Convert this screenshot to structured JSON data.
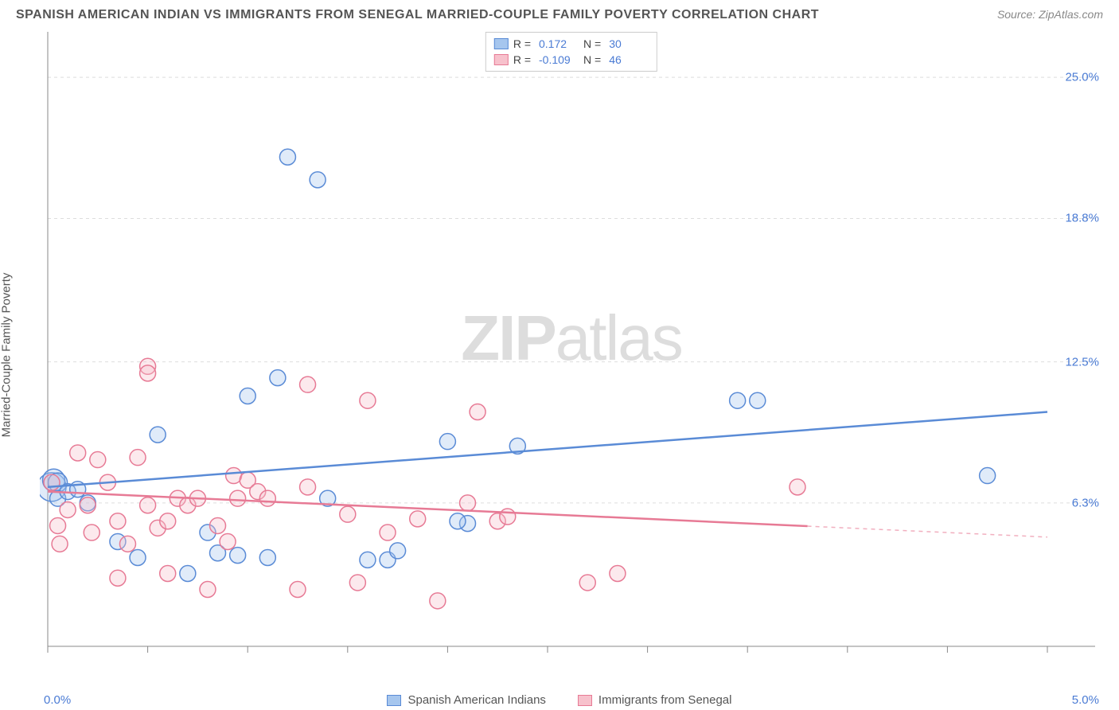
{
  "title": "SPANISH AMERICAN INDIAN VS IMMIGRANTS FROM SENEGAL MARRIED-COUPLE FAMILY POVERTY CORRELATION CHART",
  "source": "Source: ZipAtlas.com",
  "watermark": {
    "zip": "ZIP",
    "atlas": "atlas"
  },
  "y_axis_label": "Married-Couple Family Poverty",
  "chart": {
    "type": "scatter",
    "background_color": "#ffffff",
    "grid_color": "#dddddd",
    "axis_color": "#888888",
    "tick_color": "#888888",
    "xlim": [
      0.0,
      5.0
    ],
    "ylim": [
      0.0,
      27.0
    ],
    "x_ticks": [
      0.0,
      0.5,
      1.0,
      1.5,
      2.0,
      2.5,
      3.0,
      3.5,
      4.0,
      4.5,
      5.0
    ],
    "y_gridlines": [
      6.3,
      12.5,
      18.8,
      25.0
    ],
    "y_tick_labels": [
      "6.3%",
      "12.5%",
      "18.8%",
      "25.0%"
    ],
    "x_left_label": "0.0%",
    "x_right_label": "5.0%",
    "label_color": "#4a7bd4",
    "label_fontsize": 15,
    "marker_radius": 10,
    "marker_fill_opacity": 0.35,
    "marker_stroke_width": 1.5,
    "line_width": 2.5
  },
  "series": [
    {
      "name": "Spanish American Indians",
      "color_fill": "#a6c6ee",
      "color_stroke": "#5a8bd6",
      "points": [
        [
          0.02,
          7.0,
          18
        ],
        [
          0.03,
          7.3,
          14
        ],
        [
          0.05,
          7.2,
          12
        ],
        [
          0.05,
          6.5,
          10
        ],
        [
          0.1,
          6.8,
          10
        ],
        [
          0.15,
          6.9,
          10
        ],
        [
          0.2,
          6.3,
          10
        ],
        [
          0.35,
          4.6,
          10
        ],
        [
          0.45,
          3.9,
          10
        ],
        [
          0.55,
          9.3,
          10
        ],
        [
          0.7,
          3.2,
          10
        ],
        [
          0.8,
          5.0,
          10
        ],
        [
          0.85,
          4.1,
          10
        ],
        [
          0.95,
          4.0,
          10
        ],
        [
          1.0,
          11.0,
          10
        ],
        [
          1.1,
          3.9,
          10
        ],
        [
          1.15,
          11.8,
          10
        ],
        [
          1.2,
          21.5,
          10
        ],
        [
          1.35,
          20.5,
          10
        ],
        [
          1.4,
          6.5,
          10
        ],
        [
          1.6,
          3.8,
          10
        ],
        [
          1.7,
          3.8,
          10
        ],
        [
          1.75,
          4.2,
          10
        ],
        [
          2.0,
          9.0,
          10
        ],
        [
          2.1,
          5.4,
          10
        ],
        [
          2.35,
          8.8,
          10
        ],
        [
          3.45,
          10.8,
          10
        ],
        [
          3.55,
          10.8,
          10
        ],
        [
          4.7,
          7.5,
          10
        ],
        [
          2.05,
          5.5,
          10
        ]
      ],
      "trend": {
        "x1": 0.0,
        "y1": 7.0,
        "x2": 5.0,
        "y2": 10.3,
        "solid_until_x": 5.0
      },
      "legend_r": "0.172",
      "legend_n": "30"
    },
    {
      "name": "Immigrants from Senegal",
      "color_fill": "#f7c1cc",
      "color_stroke": "#e77a95",
      "points": [
        [
          0.02,
          7.2,
          10
        ],
        [
          0.05,
          5.3,
          10
        ],
        [
          0.06,
          4.5,
          10
        ],
        [
          0.1,
          6.0,
          10
        ],
        [
          0.15,
          8.5,
          10
        ],
        [
          0.2,
          6.2,
          10
        ],
        [
          0.22,
          5.0,
          10
        ],
        [
          0.25,
          8.2,
          10
        ],
        [
          0.3,
          7.2,
          10
        ],
        [
          0.35,
          5.5,
          10
        ],
        [
          0.35,
          3.0,
          10
        ],
        [
          0.4,
          4.5,
          10
        ],
        [
          0.45,
          8.3,
          10
        ],
        [
          0.5,
          12.3,
          10
        ],
        [
          0.5,
          12.0,
          10
        ],
        [
          0.5,
          6.2,
          10
        ],
        [
          0.55,
          5.2,
          10
        ],
        [
          0.6,
          5.5,
          10
        ],
        [
          0.6,
          3.2,
          10
        ],
        [
          0.65,
          6.5,
          10
        ],
        [
          0.7,
          6.2,
          10
        ],
        [
          0.75,
          6.5,
          10
        ],
        [
          0.8,
          2.5,
          10
        ],
        [
          0.85,
          5.3,
          10
        ],
        [
          0.9,
          4.6,
          10
        ],
        [
          0.93,
          7.5,
          10
        ],
        [
          0.95,
          6.5,
          10
        ],
        [
          1.0,
          7.3,
          10
        ],
        [
          1.05,
          6.8,
          10
        ],
        [
          1.1,
          6.5,
          10
        ],
        [
          1.25,
          2.5,
          10
        ],
        [
          1.3,
          7.0,
          10
        ],
        [
          1.3,
          11.5,
          10
        ],
        [
          1.5,
          5.8,
          10
        ],
        [
          1.55,
          2.8,
          10
        ],
        [
          1.6,
          10.8,
          10
        ],
        [
          1.7,
          5.0,
          10
        ],
        [
          1.85,
          5.6,
          10
        ],
        [
          1.95,
          2.0,
          10
        ],
        [
          2.1,
          6.3,
          10
        ],
        [
          2.15,
          10.3,
          10
        ],
        [
          2.25,
          5.5,
          10
        ],
        [
          2.3,
          5.7,
          10
        ],
        [
          2.7,
          2.8,
          10
        ],
        [
          2.85,
          3.2,
          10
        ],
        [
          3.75,
          7.0,
          10
        ]
      ],
      "trend": {
        "x1": 0.0,
        "y1": 6.8,
        "x2": 5.0,
        "y2": 4.8,
        "solid_until_x": 3.8
      },
      "legend_r": "-0.109",
      "legend_n": "46"
    }
  ],
  "legend_labels": {
    "r": "R =",
    "n": "N ="
  }
}
